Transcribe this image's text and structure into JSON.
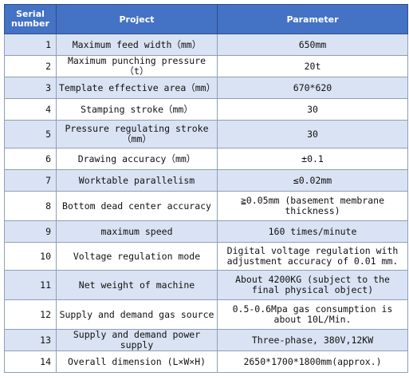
{
  "header": {
    "serial_line1": "Serial",
    "serial_line2": "number",
    "project": "Project",
    "parameter": "Parameter"
  },
  "rows": [
    {
      "num": "1",
      "project": "Maximum feed width（mm）",
      "parameter": "650mm"
    },
    {
      "num": "2",
      "project": "Maximum punching pressure（t）",
      "parameter": "20t"
    },
    {
      "num": "3",
      "project": "Template effective area（mm）",
      "parameter": "670*620"
    },
    {
      "num": "4",
      "project": "Stamping stroke（mm）",
      "parameter": "30"
    },
    {
      "num": "5",
      "project": "Pressure regulating stroke（mm）",
      "parameter": "30"
    },
    {
      "num": "6",
      "project": "Drawing accuracy（mm）",
      "parameter": "±0.1"
    },
    {
      "num": "7",
      "project": "Worktable parallelism",
      "parameter": "≤0.02mm"
    },
    {
      "num": "8",
      "project": "Bottom dead center accuracy",
      "parameter": "≧0.05mm (basement membrane thickness)"
    },
    {
      "num": "9",
      "project": "maximum speed",
      "parameter": "160 times/minute"
    },
    {
      "num": "10",
      "project": "Voltage regulation mode",
      "parameter": "Digital voltage regulation with adjustment accuracy of 0.01 mm."
    },
    {
      "num": "11",
      "project": "Net weight of machine",
      "parameter": "About 4200KG (subject to the final physical object)"
    },
    {
      "num": "12",
      "project": "Supply and demand gas source",
      "parameter": "0.5-0.6Mpa gas consumption is about 10L/Min."
    },
    {
      "num": "13",
      "project": "Supply and demand power supply",
      "parameter": "Three-phase, 380V,12KW"
    },
    {
      "num": "14",
      "project": "Overall dimension (L×W×H)",
      "parameter": "2650*1700*1800mm(approx.)"
    }
  ],
  "colors": {
    "header_bg": "#4472c4",
    "header_text": "#ffffff",
    "row_alt_bg": "#dae3f3",
    "row_bg": "#ffffff"
  }
}
